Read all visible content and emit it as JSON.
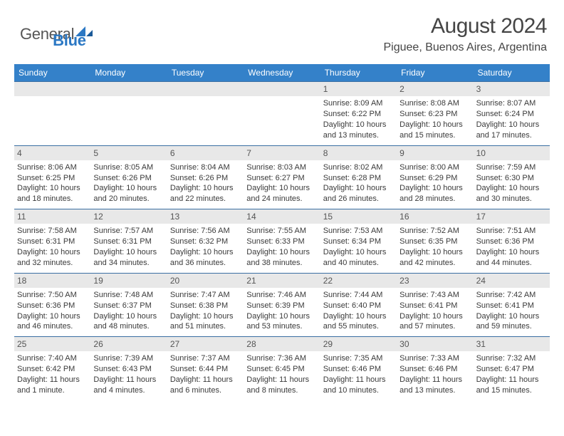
{
  "brand": {
    "part1": "General",
    "part2": "Blue"
  },
  "title": "August 2024",
  "location": "Piguee, Buenos Aires, Argentina",
  "colors": {
    "header_bg": "#3481c9",
    "header_text": "#ffffff",
    "daynum_bg": "#e8e8e8",
    "cell_border": "#3a6fa3",
    "text": "#3a3a3a",
    "logo_gray": "#555555",
    "logo_blue": "#2b78c4"
  },
  "day_headers": [
    "Sunday",
    "Monday",
    "Tuesday",
    "Wednesday",
    "Thursday",
    "Friday",
    "Saturday"
  ],
  "weeks": [
    [
      {
        "blank": true
      },
      {
        "blank": true
      },
      {
        "blank": true
      },
      {
        "blank": true
      },
      {
        "n": "1",
        "sr": "8:09 AM",
        "ss": "6:22 PM",
        "dl": "10 hours and 13 minutes."
      },
      {
        "n": "2",
        "sr": "8:08 AM",
        "ss": "6:23 PM",
        "dl": "10 hours and 15 minutes."
      },
      {
        "n": "3",
        "sr": "8:07 AM",
        "ss": "6:24 PM",
        "dl": "10 hours and 17 minutes."
      }
    ],
    [
      {
        "n": "4",
        "sr": "8:06 AM",
        "ss": "6:25 PM",
        "dl": "10 hours and 18 minutes."
      },
      {
        "n": "5",
        "sr": "8:05 AM",
        "ss": "6:26 PM",
        "dl": "10 hours and 20 minutes."
      },
      {
        "n": "6",
        "sr": "8:04 AM",
        "ss": "6:26 PM",
        "dl": "10 hours and 22 minutes."
      },
      {
        "n": "7",
        "sr": "8:03 AM",
        "ss": "6:27 PM",
        "dl": "10 hours and 24 minutes."
      },
      {
        "n": "8",
        "sr": "8:02 AM",
        "ss": "6:28 PM",
        "dl": "10 hours and 26 minutes."
      },
      {
        "n": "9",
        "sr": "8:00 AM",
        "ss": "6:29 PM",
        "dl": "10 hours and 28 minutes."
      },
      {
        "n": "10",
        "sr": "7:59 AM",
        "ss": "6:30 PM",
        "dl": "10 hours and 30 minutes."
      }
    ],
    [
      {
        "n": "11",
        "sr": "7:58 AM",
        "ss": "6:31 PM",
        "dl": "10 hours and 32 minutes."
      },
      {
        "n": "12",
        "sr": "7:57 AM",
        "ss": "6:31 PM",
        "dl": "10 hours and 34 minutes."
      },
      {
        "n": "13",
        "sr": "7:56 AM",
        "ss": "6:32 PM",
        "dl": "10 hours and 36 minutes."
      },
      {
        "n": "14",
        "sr": "7:55 AM",
        "ss": "6:33 PM",
        "dl": "10 hours and 38 minutes."
      },
      {
        "n": "15",
        "sr": "7:53 AM",
        "ss": "6:34 PM",
        "dl": "10 hours and 40 minutes."
      },
      {
        "n": "16",
        "sr": "7:52 AM",
        "ss": "6:35 PM",
        "dl": "10 hours and 42 minutes."
      },
      {
        "n": "17",
        "sr": "7:51 AM",
        "ss": "6:36 PM",
        "dl": "10 hours and 44 minutes."
      }
    ],
    [
      {
        "n": "18",
        "sr": "7:50 AM",
        "ss": "6:36 PM",
        "dl": "10 hours and 46 minutes."
      },
      {
        "n": "19",
        "sr": "7:48 AM",
        "ss": "6:37 PM",
        "dl": "10 hours and 48 minutes."
      },
      {
        "n": "20",
        "sr": "7:47 AM",
        "ss": "6:38 PM",
        "dl": "10 hours and 51 minutes."
      },
      {
        "n": "21",
        "sr": "7:46 AM",
        "ss": "6:39 PM",
        "dl": "10 hours and 53 minutes."
      },
      {
        "n": "22",
        "sr": "7:44 AM",
        "ss": "6:40 PM",
        "dl": "10 hours and 55 minutes."
      },
      {
        "n": "23",
        "sr": "7:43 AM",
        "ss": "6:41 PM",
        "dl": "10 hours and 57 minutes."
      },
      {
        "n": "24",
        "sr": "7:42 AM",
        "ss": "6:41 PM",
        "dl": "10 hours and 59 minutes."
      }
    ],
    [
      {
        "n": "25",
        "sr": "7:40 AM",
        "ss": "6:42 PM",
        "dl": "11 hours and 1 minute."
      },
      {
        "n": "26",
        "sr": "7:39 AM",
        "ss": "6:43 PM",
        "dl": "11 hours and 4 minutes."
      },
      {
        "n": "27",
        "sr": "7:37 AM",
        "ss": "6:44 PM",
        "dl": "11 hours and 6 minutes."
      },
      {
        "n": "28",
        "sr": "7:36 AM",
        "ss": "6:45 PM",
        "dl": "11 hours and 8 minutes."
      },
      {
        "n": "29",
        "sr": "7:35 AM",
        "ss": "6:46 PM",
        "dl": "11 hours and 10 minutes."
      },
      {
        "n": "30",
        "sr": "7:33 AM",
        "ss": "6:46 PM",
        "dl": "11 hours and 13 minutes."
      },
      {
        "n": "31",
        "sr": "7:32 AM",
        "ss": "6:47 PM",
        "dl": "11 hours and 15 minutes."
      }
    ]
  ],
  "labels": {
    "sunrise": "Sunrise: ",
    "sunset": "Sunset: ",
    "daylight": "Daylight: "
  }
}
